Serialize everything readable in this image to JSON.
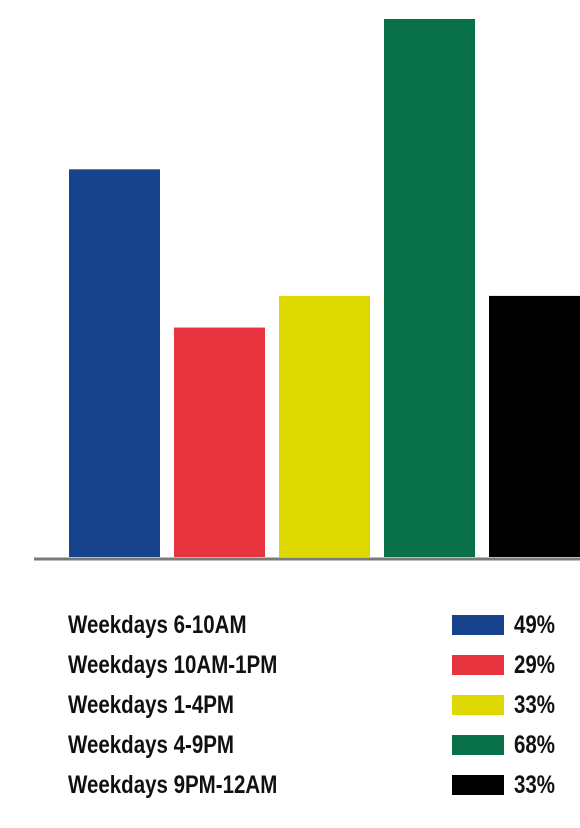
{
  "chart_data": {
    "type": "bar",
    "categories": [
      "Weekdays 6-10AM",
      "Weekdays 10AM-1PM",
      "Weekdays 1-4PM",
      "Weekdays 4-9PM",
      "Weekdays 9PM-12AM"
    ],
    "values": [
      49,
      29,
      33,
      68,
      33
    ],
    "value_labels": [
      "49%",
      "29%",
      "33%",
      "68%",
      "33%"
    ],
    "unit": "%",
    "colors": [
      "#17428c",
      "#e8343f",
      "#dcd800",
      "#08714a",
      "#000000"
    ],
    "title": "",
    "xlabel": "",
    "ylabel": "",
    "ylim": [
      0,
      68
    ],
    "grid": false,
    "legend_position": "bottom"
  }
}
